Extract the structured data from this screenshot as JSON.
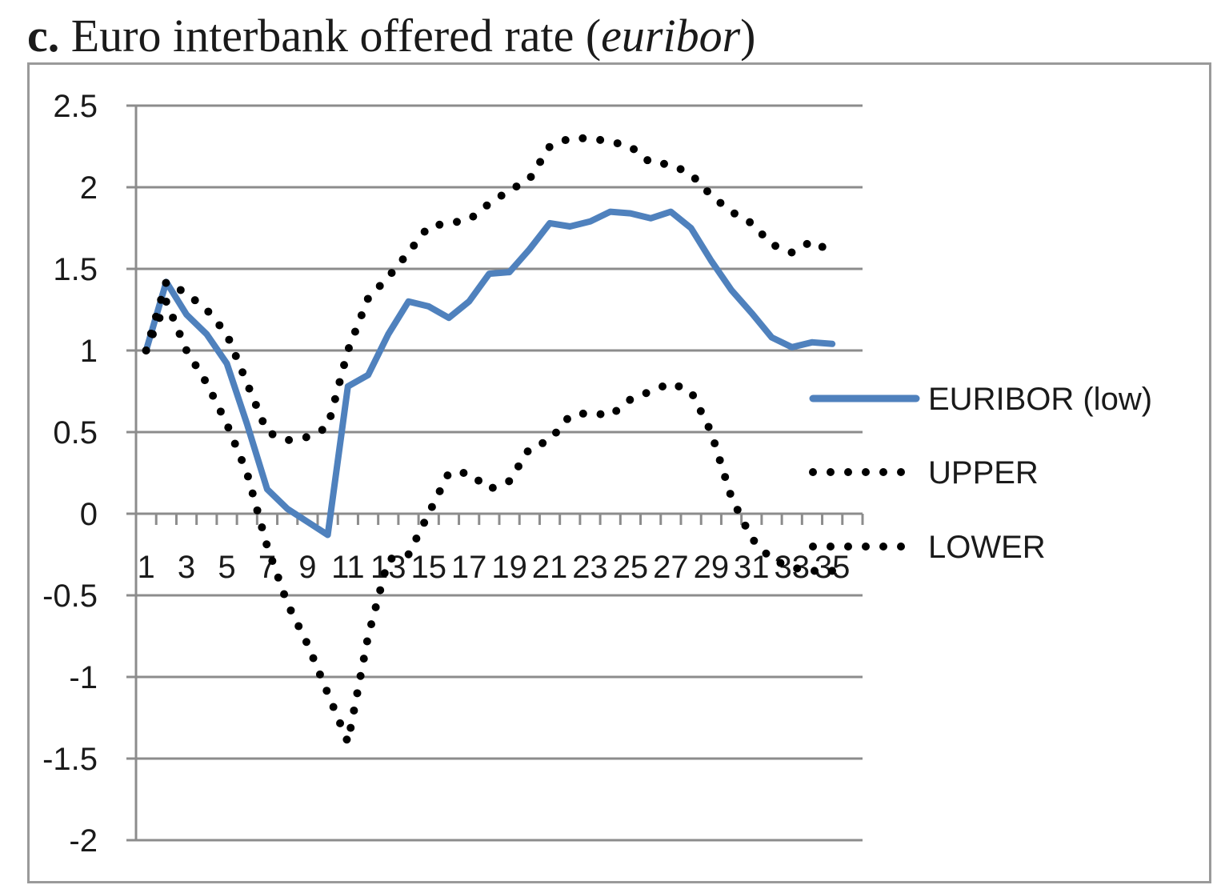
{
  "figure": {
    "label": "c.",
    "title_main": " Euro interbank offered rate (",
    "title_italic": "euribor",
    "title_end": ")"
  },
  "chart_data": {
    "type": "line",
    "title": "c. Euro interbank offered rate (euribor)",
    "xlabel": "",
    "ylabel": "",
    "ylim": [
      -2,
      2.5
    ],
    "y_ticks": [
      "2.5",
      "2",
      "1.5",
      "1",
      "0.5",
      "0",
      "-0.5",
      "-1",
      "-1.5",
      "-2"
    ],
    "x_tick_labels": [
      "1",
      "3",
      "5",
      "7",
      "9",
      "11",
      "13",
      "15",
      "17",
      "19",
      "21",
      "23",
      "25",
      "27",
      "29",
      "31",
      "33",
      "35"
    ],
    "x": [
      1,
      2,
      3,
      4,
      5,
      6,
      7,
      8,
      9,
      10,
      11,
      12,
      13,
      14,
      15,
      16,
      17,
      18,
      19,
      20,
      21,
      22,
      23,
      24,
      25,
      26,
      27,
      28,
      29,
      30,
      31,
      32,
      33,
      34,
      35,
      36
    ],
    "grid": true,
    "legend_position": "right",
    "series": [
      {
        "name": "EURIBOR (low)",
        "style": "solid",
        "color": "#4f81bd",
        "values": [
          1.0,
          1.42,
          1.22,
          1.1,
          0.92,
          0.55,
          0.15,
          0.03,
          -0.05,
          -0.13,
          0.78,
          0.85,
          1.1,
          1.3,
          1.27,
          1.2,
          1.3,
          1.47,
          1.48,
          1.62,
          1.78,
          1.76,
          1.79,
          1.85,
          1.84,
          1.81,
          1.85,
          1.75,
          1.55,
          1.37,
          1.23,
          1.08,
          1.02,
          1.05,
          1.04,
          null
        ]
      },
      {
        "name": "UPPER",
        "style": "dotted",
        "color": "#000000",
        "values": [
          1.0,
          1.42,
          1.35,
          1.25,
          1.1,
          0.8,
          0.5,
          0.45,
          0.47,
          0.53,
          1.0,
          1.32,
          1.45,
          1.6,
          1.76,
          1.78,
          1.8,
          1.9,
          1.98,
          2.05,
          2.25,
          2.3,
          2.3,
          2.28,
          2.25,
          2.15,
          2.14,
          2.08,
          1.95,
          1.85,
          1.78,
          1.65,
          1.6,
          1.67,
          1.6,
          null
        ]
      },
      {
        "name": "LOWER",
        "style": "dotted",
        "color": "#000000",
        "values": [
          1.0,
          1.3,
          1.0,
          0.8,
          0.55,
          0.25,
          -0.2,
          -0.55,
          -0.8,
          -1.1,
          -1.4,
          -0.75,
          -0.28,
          -0.25,
          0.0,
          0.25,
          0.25,
          0.15,
          0.2,
          0.4,
          0.45,
          0.6,
          0.62,
          0.6,
          0.7,
          0.75,
          0.8,
          0.75,
          0.5,
          0.1,
          -0.15,
          -0.28,
          -0.33,
          -0.35,
          -0.35,
          null
        ]
      }
    ]
  }
}
